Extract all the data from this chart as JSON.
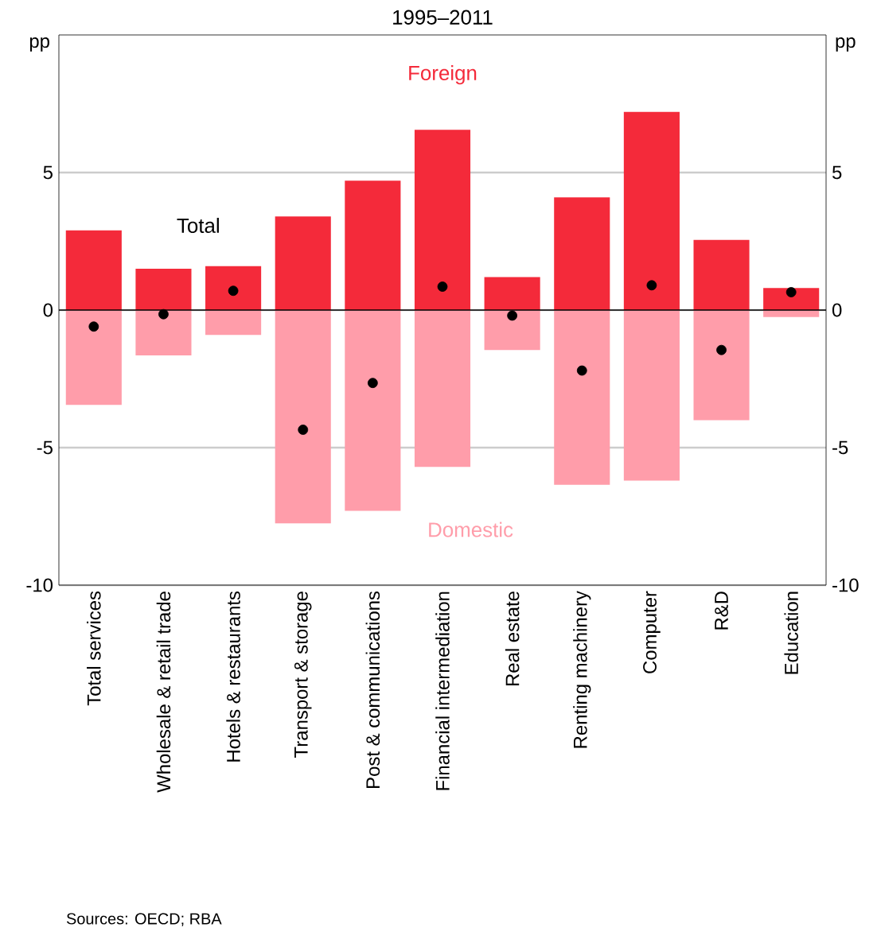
{
  "chart_data": {
    "type": "bar",
    "title": "1995–2011",
    "ylabel": "pp",
    "y2label": "pp",
    "stacked": true,
    "grid": "y",
    "categories": [
      "Total services",
      "Wholesale & retail trade",
      "Hotels & restaurants",
      "Transport & storage",
      "Post & communications",
      "Financial intermediation",
      "Real estate",
      "Renting machinery",
      "Computer",
      "R&D",
      "Education"
    ],
    "series": [
      {
        "name": "Foreign",
        "color": "#f42a3a",
        "values": [
          2.9,
          1.5,
          1.6,
          3.4,
          4.7,
          6.55,
          1.2,
          4.1,
          7.2,
          2.55,
          0.8
        ]
      },
      {
        "name": "Domestic",
        "color": "#ff9daa",
        "values": [
          -3.45,
          -1.65,
          -0.9,
          -7.75,
          -7.3,
          -5.7,
          -1.45,
          -6.35,
          -6.2,
          -4.0,
          -0.25
        ]
      },
      {
        "name": "Total",
        "type": "scatter",
        "color": "#000000",
        "values": [
          -0.6,
          -0.15,
          0.7,
          -4.35,
          -2.65,
          0.85,
          -0.2,
          -2.2,
          0.9,
          -1.45,
          0.65
        ]
      }
    ],
    "ylim": [
      -10,
      10
    ],
    "yticks": [
      -10,
      -5,
      0,
      5
    ],
    "y2lim": [
      -10,
      10
    ],
    "y2ticks": [
      -10,
      -5,
      0,
      5
    ],
    "annotations": [
      "Sources: OECD; RBA"
    ]
  }
}
